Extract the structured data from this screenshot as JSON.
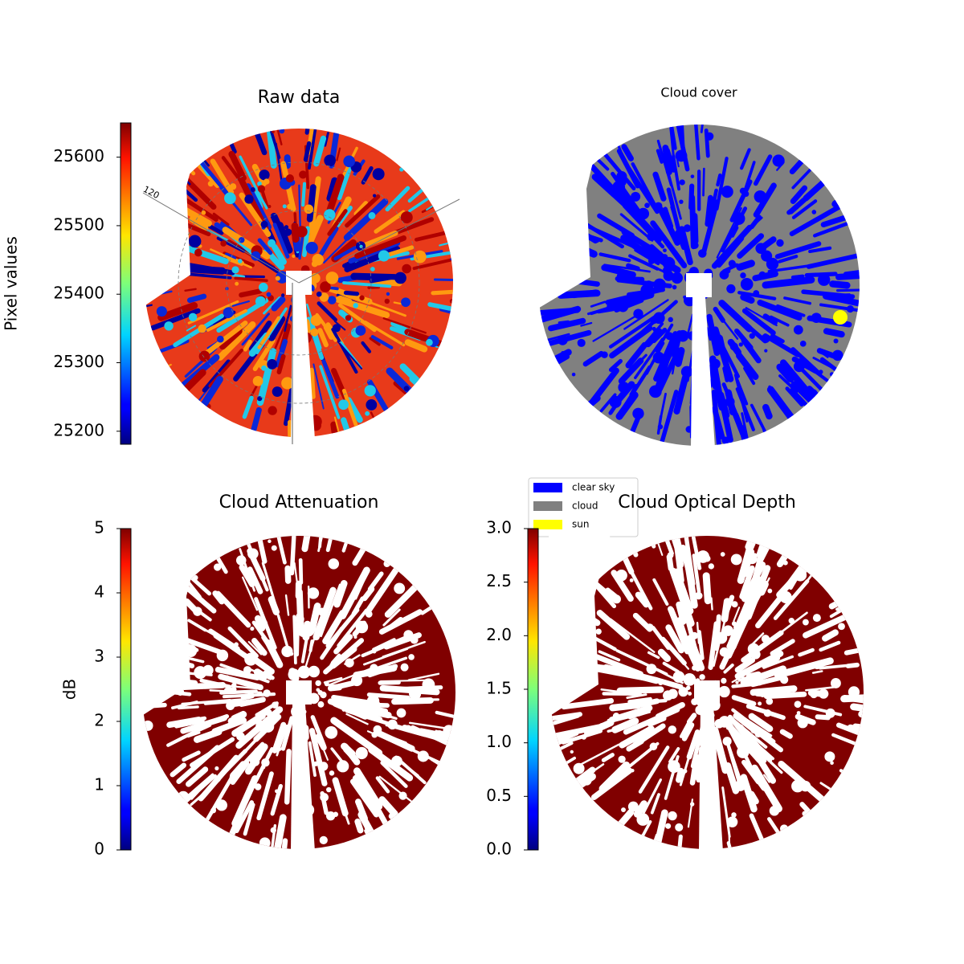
{
  "chart_data": [
    {
      "type": "image",
      "title": "Raw data",
      "annotations": [
        "120"
      ],
      "colorbar": {
        "label": "Pixel values",
        "colormap": "jet",
        "lim": [
          25181,
          25650
        ],
        "ticks": [
          25200,
          25300,
          25400,
          25500,
          25600
        ]
      }
    },
    {
      "type": "image",
      "title": "Cloud cover",
      "legend": [
        {
          "name": "clear sky",
          "color": "#0000ff"
        },
        {
          "name": "cloud",
          "color": "#808080"
        },
        {
          "name": "sun",
          "color": "#ffff00"
        }
      ]
    },
    {
      "type": "image",
      "title": "Cloud Attenuation",
      "colorbar": {
        "label": "dB",
        "colormap": "jet",
        "lim": [
          0,
          5
        ],
        "ticks": [
          0,
          1,
          2,
          3,
          4,
          5
        ]
      }
    },
    {
      "type": "image",
      "title": "Cloud Optical Depth",
      "colorbar": {
        "colormap": "jet",
        "lim": [
          0,
          3
        ],
        "ticks": [
          {
            "value": 0,
            "label": "0.0"
          },
          0.5,
          {
            "value": 1,
            "label": "1.0"
          },
          1.5,
          {
            "value": 2,
            "label": "2.0"
          },
          2.5,
          {
            "value": 3,
            "label": "3.0"
          }
        ]
      }
    }
  ]
}
